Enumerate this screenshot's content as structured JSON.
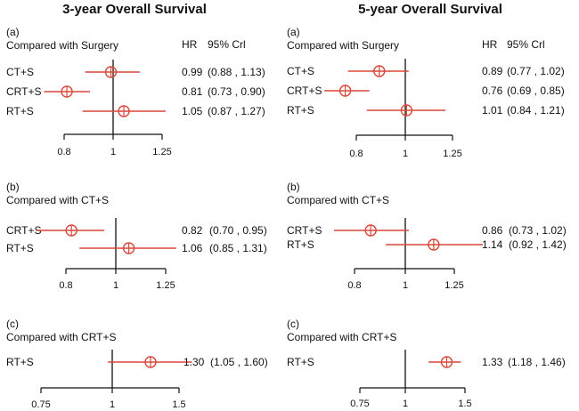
{
  "figure": {
    "left_title": "3-year Overall Survival",
    "right_title": "5-year Overall Survival"
  },
  "style": {
    "marker_color": "#d9473a",
    "axis_color": "#111111"
  },
  "chart_data": [
    {
      "type": "forest",
      "column": "3-year Overall Survival",
      "panel": "(a)",
      "comparison": "Compared with Surgery",
      "hr_header": "HR",
      "ci_header": "95% Crl",
      "ticks": [
        "0.8",
        "1",
        "1.25"
      ],
      "xlim": [
        0.8,
        1.25
      ],
      "rows": [
        {
          "label": "CT+S",
          "hr": 0.99,
          "lo": 0.88,
          "hi": 1.13,
          "hr_text": "0.99",
          "ci_text": "(0.88 , 1.13)"
        },
        {
          "label": "CRT+S",
          "hr": 0.81,
          "lo": 0.73,
          "hi": 0.9,
          "hr_text": "0.81",
          "ci_text": "(0.73 , 0.90)"
        },
        {
          "label": "RT+S",
          "hr": 1.05,
          "lo": 0.87,
          "hi": 1.27,
          "hr_text": "1.05",
          "ci_text": "(0.87 , 1.27)"
        }
      ]
    },
    {
      "type": "forest",
      "column": "3-year Overall Survival",
      "panel": "(b)",
      "comparison": "Compared with CT+S",
      "hr_header": "",
      "ci_header": "",
      "ticks": [
        "0.8",
        "1",
        "1.25"
      ],
      "xlim": [
        0.8,
        1.25
      ],
      "rows": [
        {
          "label": "CRT+S",
          "hr": 0.82,
          "lo": 0.7,
          "hi": 0.95,
          "hr_text": "0.82",
          "ci_text": "(0.70 , 0.95)"
        },
        {
          "label": "RT+S",
          "hr": 1.06,
          "lo": 0.85,
          "hi": 1.31,
          "hr_text": "1.06",
          "ci_text": "(0.85 , 1.31)"
        }
      ]
    },
    {
      "type": "forest",
      "column": "3-year Overall Survival",
      "panel": "(c)",
      "comparison": "Compared with CRT+S",
      "hr_header": "",
      "ci_header": "",
      "ticks": [
        "0.75",
        "1",
        "1.5"
      ],
      "xlim": [
        0.75,
        1.5
      ],
      "rows": [
        {
          "label": "RT+S",
          "hr": 1.3,
          "lo": 1.05,
          "hi": 1.6,
          "hr_text": "1.30",
          "ci_text": "(1.05 , 1.60)"
        }
      ]
    },
    {
      "type": "forest",
      "column": "5-year Overall Survival",
      "panel": "(a)",
      "comparison": "Compared with Surgery",
      "hr_header": "HR",
      "ci_header": "95% Crl",
      "ticks": [
        "0.8",
        "1",
        "1.25"
      ],
      "xlim": [
        0.8,
        1.25
      ],
      "rows": [
        {
          "label": "CT+S",
          "hr": 0.89,
          "lo": 0.77,
          "hi": 1.02,
          "hr_text": "0.89",
          "ci_text": "(0.77 , 1.02)"
        },
        {
          "label": "CRT+S",
          "hr": 0.76,
          "lo": 0.69,
          "hi": 0.85,
          "hr_text": "0.76",
          "ci_text": "(0.69 , 0.85)"
        },
        {
          "label": "RT+S",
          "hr": 1.01,
          "lo": 0.84,
          "hi": 1.21,
          "hr_text": "1.01",
          "ci_text": "(0.84 , 1.21)"
        }
      ]
    },
    {
      "type": "forest",
      "column": "5-year Overall Survival",
      "panel": "(b)",
      "comparison": "Compared with CT+S",
      "hr_header": "",
      "ci_header": "",
      "ticks": [
        "0.8",
        "1",
        "1.25"
      ],
      "xlim": [
        0.8,
        1.25
      ],
      "rows": [
        {
          "label": "CRT+S",
          "hr": 0.86,
          "lo": 0.73,
          "hi": 1.02,
          "hr_text": "0.86",
          "ci_text": "(0.73 , 1.02)"
        },
        {
          "label": "RT+S",
          "hr": 1.14,
          "lo": 0.92,
          "hi": 1.42,
          "hr_text": "1.14",
          "ci_text": "(0.92 , 1.42)"
        }
      ]
    },
    {
      "type": "forest",
      "column": "5-year Overall Survival",
      "panel": "(c)",
      "comparison": "Compared with CRT+S",
      "hr_header": "",
      "ci_header": "",
      "ticks": [
        "0.75",
        "1",
        "1.5"
      ],
      "xlim": [
        0.75,
        1.5
      ],
      "rows": [
        {
          "label": "RT+S",
          "hr": 1.33,
          "lo": 1.18,
          "hi": 1.46,
          "hr_text": "1.33",
          "ci_text": "(1.18 , 1.46)"
        }
      ]
    }
  ]
}
